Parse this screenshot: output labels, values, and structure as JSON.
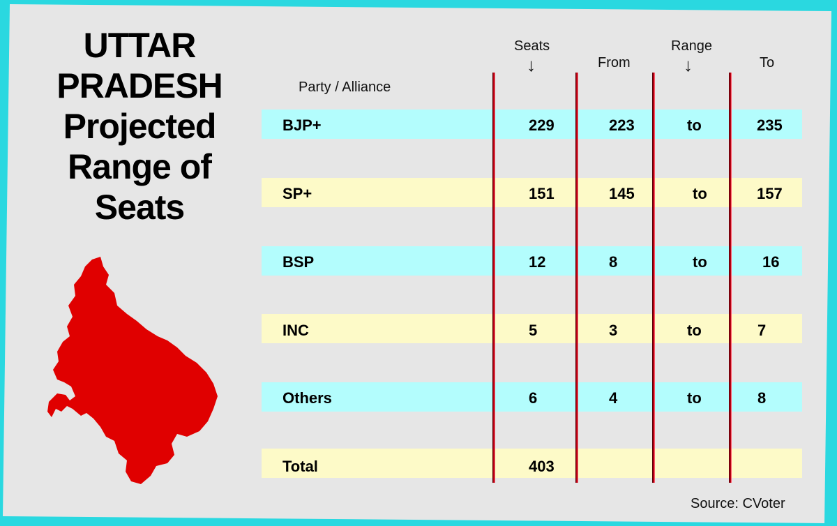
{
  "title_lines": [
    "UTTAR",
    "PRADESH",
    "Projected",
    "Range of",
    "Seats"
  ],
  "headers": {
    "party": "Party / Alliance",
    "seats": "Seats",
    "from": "From",
    "range": "Range",
    "to": "To",
    "arrow": "↓"
  },
  "source": "Source: CVoter",
  "colors": {
    "band_cyan": "#b3fdfd",
    "band_yellow": "#fdfac8",
    "divider": "#b00010",
    "map": "#e00000",
    "background": "#2ad8e0",
    "card": "#e6e6e6"
  },
  "chart_data": {
    "type": "table",
    "columns": [
      "Party / Alliance",
      "Seats",
      "From",
      "Range",
      "To"
    ],
    "rows": [
      {
        "party": "BJP+",
        "seats": "229",
        "from": "223",
        "sep": "to",
        "to": "235"
      },
      {
        "party": "SP+",
        "seats": "151",
        "from": "145",
        "sep": "to",
        "to": "157"
      },
      {
        "party": "BSP",
        "seats": "12",
        "from": "8",
        "sep": "to",
        "to": "16"
      },
      {
        "party": "INC",
        "seats": "5",
        "from": "3",
        "sep": "to",
        "to": "7"
      },
      {
        "party": "Others",
        "seats": "6",
        "from": "4",
        "sep": "to",
        "to": "8"
      },
      {
        "party": "Total",
        "seats": "403",
        "from": "",
        "sep": "",
        "to": ""
      }
    ]
  }
}
